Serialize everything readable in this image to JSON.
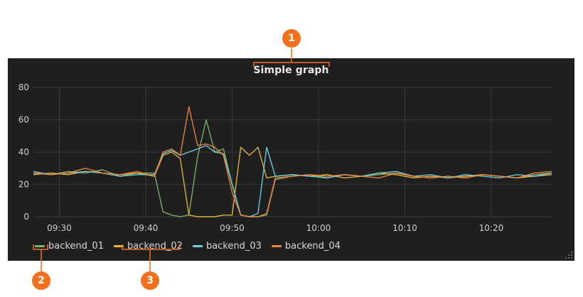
{
  "panel": {
    "title": "Simple graph"
  },
  "colors": {
    "background": "#1f1f20",
    "grid": "#3a3a3a",
    "callout": "#f2701e",
    "backend_01": "#7eb26d",
    "backend_02": "#eab839",
    "backend_03": "#6ed0e0",
    "backend_04": "#ef843c"
  },
  "callouts": [
    "1",
    "2",
    "3"
  ],
  "chart_data": {
    "type": "line",
    "title": "Simple graph",
    "xlabel": "",
    "ylabel": "",
    "x_range": [
      "09:27",
      "10:27"
    ],
    "ylim": [
      0,
      80
    ],
    "y_ticks": [
      0,
      20,
      40,
      60,
      80
    ],
    "x_ticks": [
      "09:30",
      "09:40",
      "09:50",
      "10:00",
      "10:10",
      "10:20"
    ],
    "grid": true,
    "legend": "bottom",
    "x": [
      "09:27",
      "09:29",
      "09:31",
      "09:33",
      "09:35",
      "09:37",
      "09:39",
      "09:41",
      "09:42",
      "09:43",
      "09:44",
      "09:45",
      "09:46",
      "09:47",
      "09:48",
      "09:49",
      "09:50",
      "09:51",
      "09:52",
      "09:53",
      "09:54",
      "09:55",
      "09:57",
      "09:59",
      "10:01",
      "10:03",
      "10:05",
      "10:07",
      "10:09",
      "10:11",
      "10:13",
      "10:15",
      "10:17",
      "10:19",
      "10:21",
      "10:23",
      "10:25",
      "10:27"
    ],
    "series": [
      {
        "name": "backend_01",
        "color": "#7eb26d",
        "values": [
          27,
          26,
          28,
          27,
          29,
          25,
          27,
          27,
          3,
          1,
          0,
          1,
          37,
          60,
          40,
          42,
          20,
          1,
          0,
          0,
          1,
          23,
          25,
          26,
          24,
          26,
          25,
          26,
          27,
          25,
          24,
          25,
          24,
          26,
          25,
          24,
          26,
          27
        ]
      },
      {
        "name": "backend_02",
        "color": "#eab839",
        "values": [
          26,
          27,
          26,
          28,
          27,
          26,
          27,
          25,
          38,
          40,
          36,
          1,
          0,
          0,
          0,
          1,
          1,
          43,
          38,
          43,
          24,
          25,
          26,
          25,
          26,
          24,
          25,
          27,
          26,
          24,
          25,
          24,
          25,
          26,
          25,
          24,
          25,
          26
        ]
      },
      {
        "name": "backend_03",
        "color": "#6ed0e0",
        "values": [
          28,
          26,
          27,
          28,
          27,
          25,
          26,
          26,
          39,
          41,
          38,
          40,
          42,
          44,
          40,
          39,
          20,
          1,
          0,
          2,
          43,
          25,
          26,
          25,
          24,
          26,
          25,
          27,
          28,
          25,
          26,
          24,
          26,
          25,
          24,
          26,
          25,
          27
        ]
      },
      {
        "name": "backend_04",
        "color": "#ef843c",
        "values": [
          27,
          26,
          27,
          30,
          27,
          26,
          28,
          25,
          40,
          42,
          38,
          68,
          44,
          45,
          43,
          38,
          15,
          1,
          0,
          0,
          2,
          24,
          25,
          26,
          25,
          26,
          25,
          24,
          27,
          25,
          24,
          25,
          24,
          26,
          25,
          24,
          27,
          28
        ]
      }
    ]
  }
}
